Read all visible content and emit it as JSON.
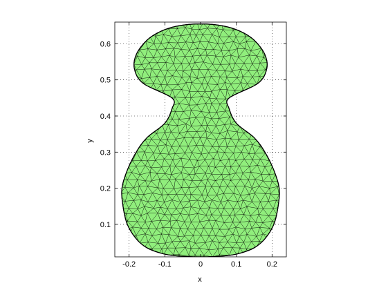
{
  "figure": {
    "x_axis": {
      "label": "x",
      "range": [
        -0.24,
        0.24
      ],
      "ticks": [
        -0.2,
        -0.1,
        0,
        0.1,
        0.2
      ],
      "tick_labels": [
        "-0.2",
        "-0.1",
        "0",
        "0.1",
        "0.2"
      ]
    },
    "y_axis": {
      "label": "y",
      "range": [
        0.01,
        0.66
      ],
      "ticks": [
        0.1,
        0.2,
        0.3,
        0.4,
        0.5,
        0.6
      ],
      "tick_labels": [
        "0.1",
        "0.2",
        "0.3",
        "0.4",
        "0.5",
        "0.6"
      ]
    },
    "grid": "dotted",
    "fill_color": "#90ee7c",
    "edge_color": "#000000"
  }
}
